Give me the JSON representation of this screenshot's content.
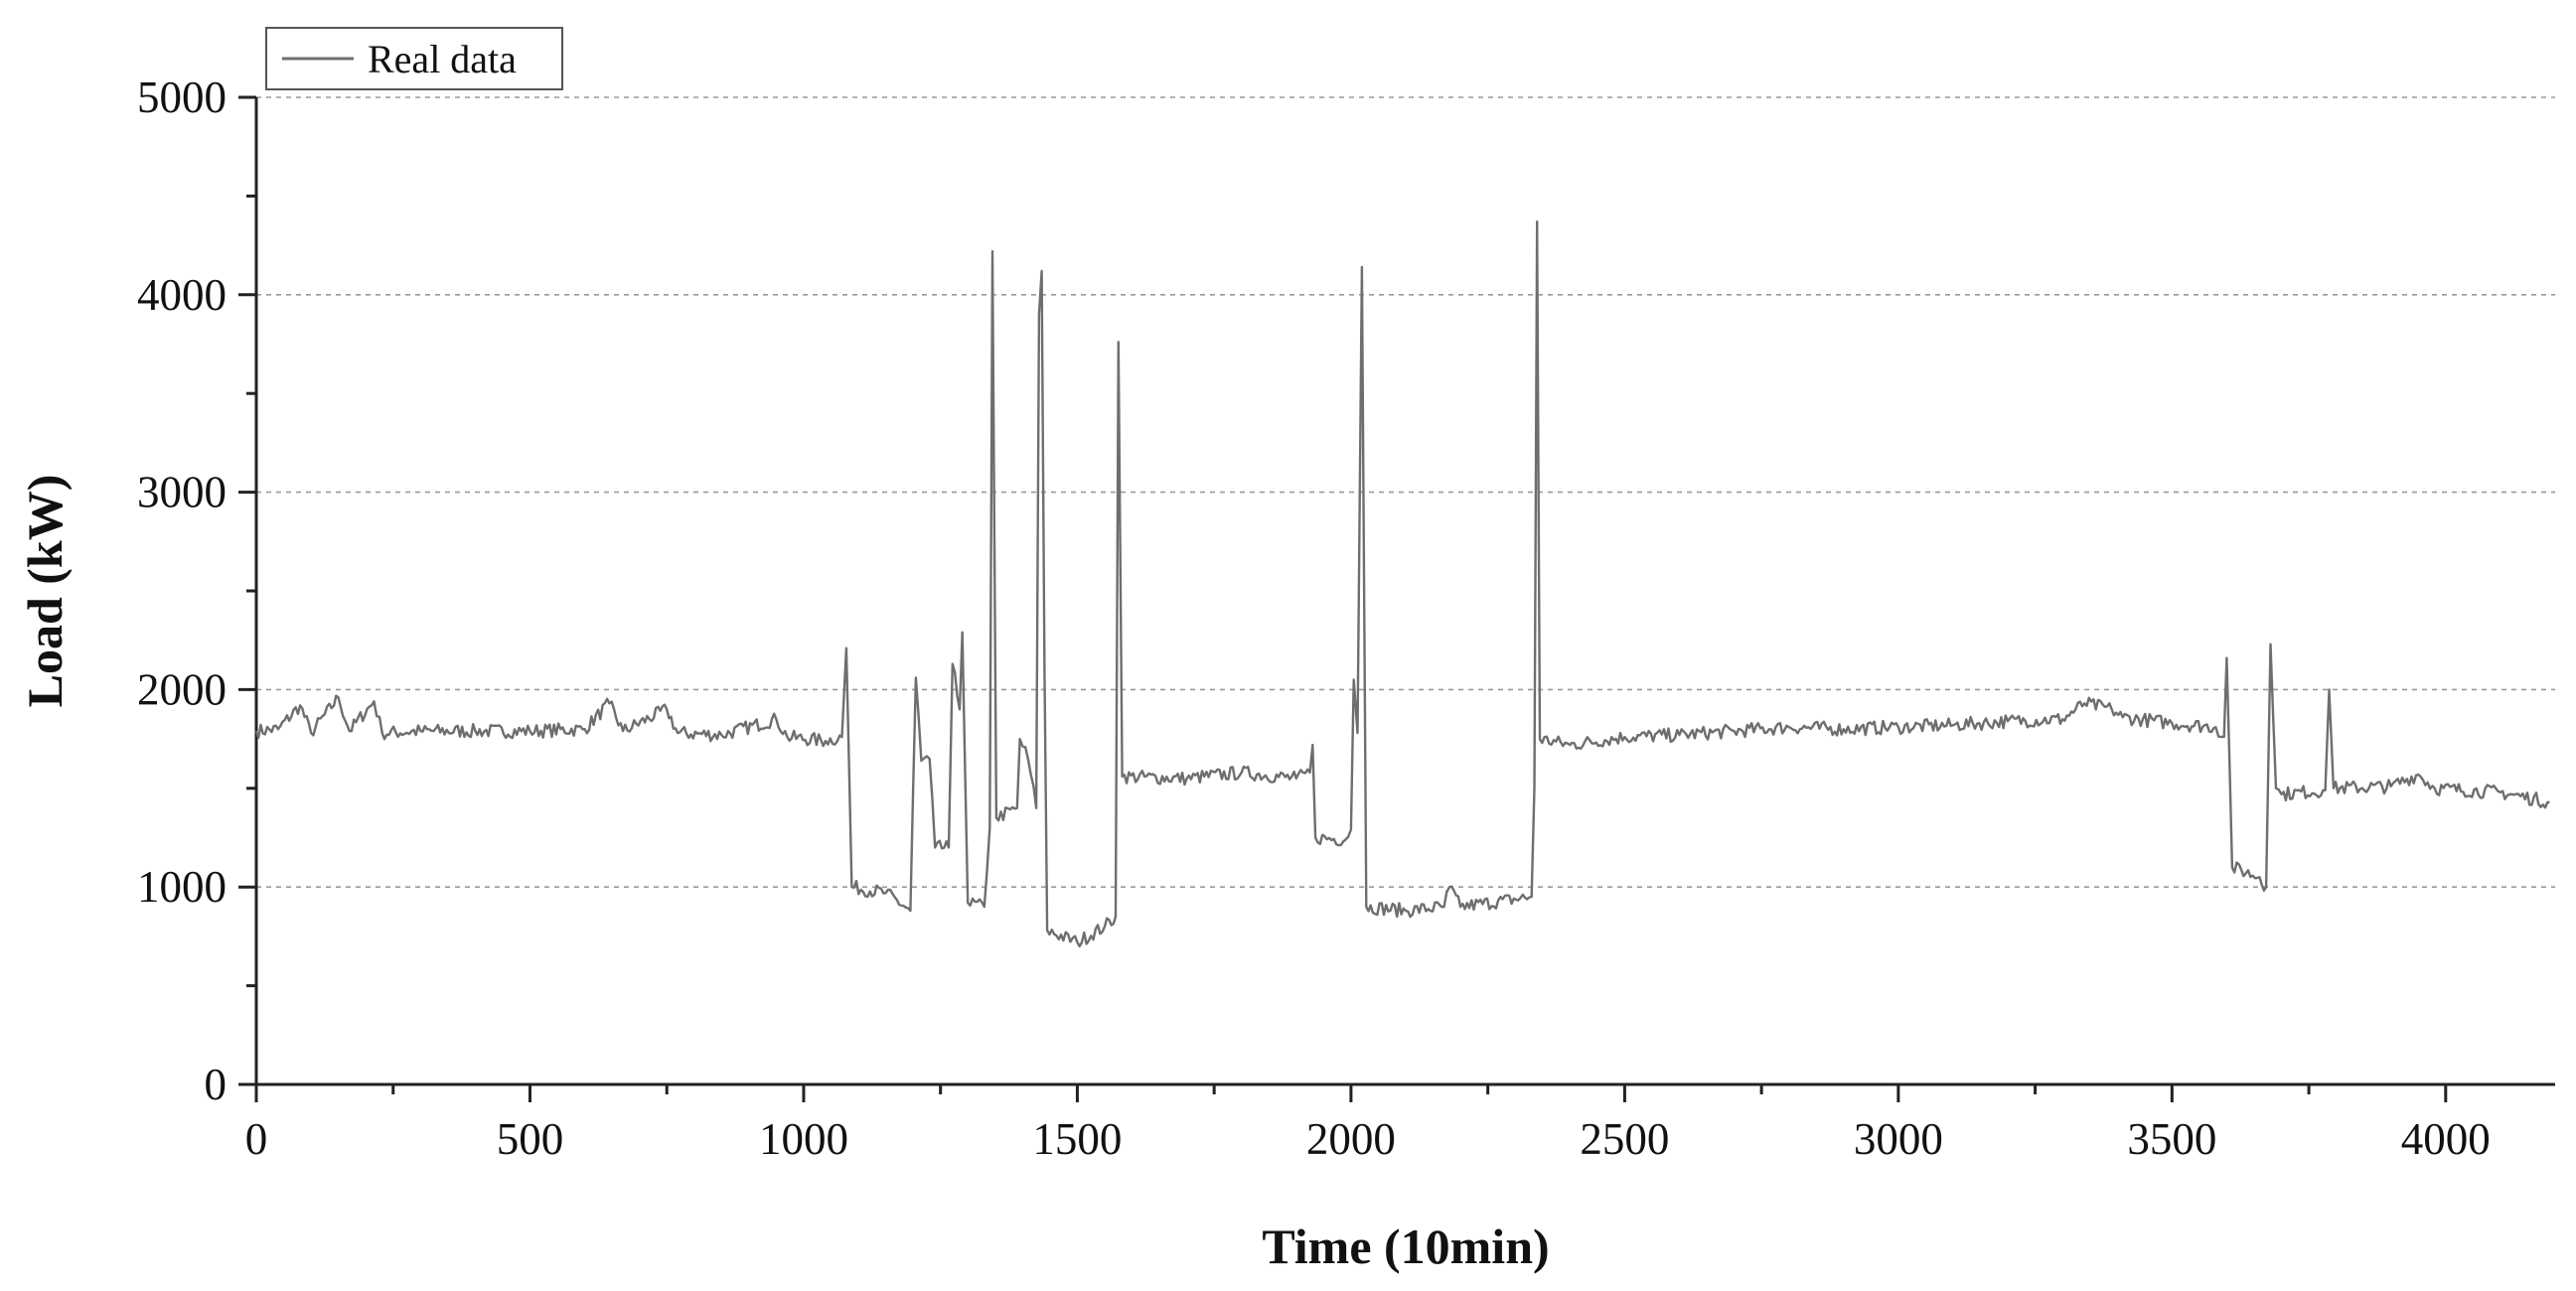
{
  "chart_data": {
    "type": "line",
    "title": "",
    "xlabel": "Time (10min)",
    "ylabel": "Load (kW)",
    "xlim": [
      0,
      4200
    ],
    "ylim": [
      0,
      5000
    ],
    "xticks": [
      0,
      500,
      1000,
      1500,
      2000,
      2500,
      3000,
      3500,
      4000
    ],
    "yticks": [
      0,
      1000,
      2000,
      3000,
      4000,
      5000
    ],
    "grid": {
      "horizontal": true,
      "vertical": false,
      "style": "dashed"
    },
    "legend": {
      "position": "top-left",
      "entries": [
        "Real data"
      ]
    },
    "series": [
      {
        "name": "Real data",
        "color": "#6e6e6e",
        "points": [
          [
            0,
            1790
          ],
          [
            40,
            1800
          ],
          [
            80,
            1920
          ],
          [
            100,
            1780
          ],
          [
            150,
            1960
          ],
          [
            170,
            1790
          ],
          [
            215,
            1940
          ],
          [
            230,
            1780
          ],
          [
            300,
            1790
          ],
          [
            400,
            1790
          ],
          [
            500,
            1790
          ],
          [
            600,
            1800
          ],
          [
            645,
            1930
          ],
          [
            670,
            1790
          ],
          [
            750,
            1900
          ],
          [
            770,
            1780
          ],
          [
            850,
            1770
          ],
          [
            950,
            1850
          ],
          [
            970,
            1760
          ],
          [
            1040,
            1740
          ],
          [
            1070,
            1760
          ],
          [
            1078,
            2210
          ],
          [
            1088,
            1000
          ],
          [
            1150,
            970
          ],
          [
            1195,
            880
          ],
          [
            1205,
            2060
          ],
          [
            1215,
            1640
          ],
          [
            1230,
            1650
          ],
          [
            1240,
            1200
          ],
          [
            1265,
            1200
          ],
          [
            1272,
            2130
          ],
          [
            1285,
            1900
          ],
          [
            1290,
            2290
          ],
          [
            1300,
            920
          ],
          [
            1330,
            900
          ],
          [
            1340,
            1300
          ],
          [
            1345,
            4220
          ],
          [
            1352,
            1350
          ],
          [
            1390,
            1400
          ],
          [
            1395,
            1750
          ],
          [
            1410,
            1650
          ],
          [
            1425,
            1400
          ],
          [
            1430,
            3900
          ],
          [
            1435,
            4120
          ],
          [
            1440,
            2100
          ],
          [
            1445,
            780
          ],
          [
            1500,
            720
          ],
          [
            1550,
            800
          ],
          [
            1570,
            850
          ],
          [
            1575,
            3760
          ],
          [
            1582,
            1560
          ],
          [
            1700,
            1550
          ],
          [
            1800,
            1580
          ],
          [
            1900,
            1550
          ],
          [
            1925,
            1580
          ],
          [
            1930,
            1720
          ],
          [
            1935,
            1250
          ],
          [
            1990,
            1240
          ],
          [
            2000,
            1290
          ],
          [
            2005,
            2050
          ],
          [
            2012,
            1780
          ],
          [
            2020,
            4140
          ],
          [
            2028,
            900
          ],
          [
            2100,
            880
          ],
          [
            2170,
            900
          ],
          [
            2180,
            1000
          ],
          [
            2200,
            900
          ],
          [
            2330,
            950
          ],
          [
            2335,
            1500
          ],
          [
            2340,
            4370
          ],
          [
            2345,
            1750
          ],
          [
            2400,
            1720
          ],
          [
            2500,
            1760
          ],
          [
            2600,
            1770
          ],
          [
            2700,
            1790
          ],
          [
            2800,
            1810
          ],
          [
            2900,
            1800
          ],
          [
            3000,
            1810
          ],
          [
            3100,
            1820
          ],
          [
            3200,
            1840
          ],
          [
            3300,
            1850
          ],
          [
            3340,
            1930
          ],
          [
            3390,
            1900
          ],
          [
            3410,
            1860
          ],
          [
            3500,
            1830
          ],
          [
            3580,
            1810
          ],
          [
            3595,
            1760
          ],
          [
            3600,
            2160
          ],
          [
            3610,
            1100
          ],
          [
            3660,
            1050
          ],
          [
            3672,
            1000
          ],
          [
            3680,
            2230
          ],
          [
            3690,
            1500
          ],
          [
            3700,
            1470
          ],
          [
            3780,
            1490
          ],
          [
            3787,
            2000
          ],
          [
            3795,
            1500
          ],
          [
            3900,
            1510
          ],
          [
            3950,
            1570
          ],
          [
            3980,
            1500
          ],
          [
            4100,
            1480
          ],
          [
            4190,
            1430
          ]
        ]
      }
    ]
  }
}
